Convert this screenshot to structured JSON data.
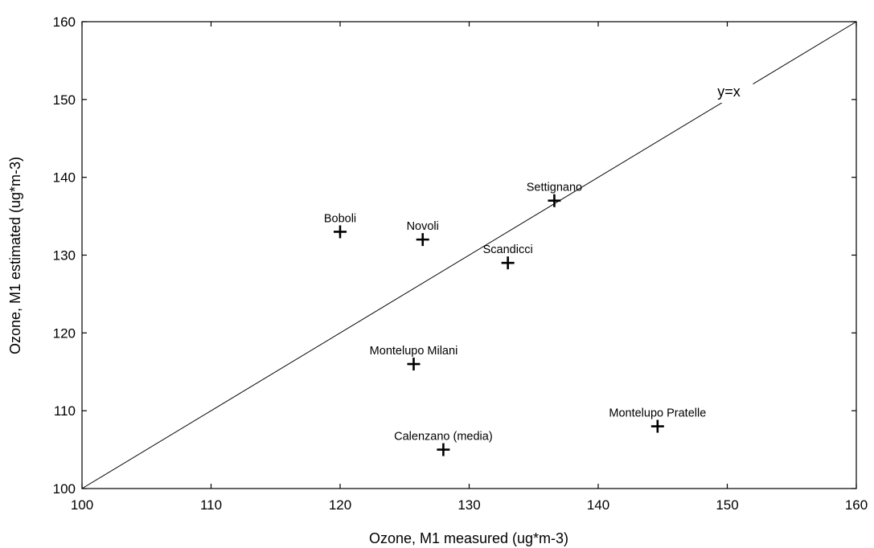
{
  "chart_data": {
    "type": "scatter",
    "xlabel": "Ozone, M1 measured (ug*m-3)",
    "ylabel": "Ozone, M1 estimated (ug*m-3)",
    "xlim": [
      100,
      160
    ],
    "ylim": [
      100,
      160
    ],
    "x_ticks": [
      "100",
      "110",
      "120",
      "130",
      "140",
      "150",
      "160"
    ],
    "y_ticks": [
      "100",
      "110",
      "120",
      "130",
      "140",
      "150",
      "160"
    ],
    "grid": false,
    "marker": "plus",
    "reference_line": {
      "label": "y=x",
      "from": [
        100,
        100
      ],
      "to": [
        160,
        160
      ]
    },
    "points": [
      {
        "label": "Boboli",
        "x": 120.0,
        "y": 133.0
      },
      {
        "label": "Novoli",
        "x": 126.4,
        "y": 132.0
      },
      {
        "label": "Settignano",
        "x": 136.6,
        "y": 137.0
      },
      {
        "label": "Scandicci",
        "x": 133.0,
        "y": 129.0
      },
      {
        "label": "Montelupo Milani",
        "x": 125.7,
        "y": 116.0
      },
      {
        "label": "Calenzano (media)",
        "x": 128.0,
        "y": 105.0
      },
      {
        "label": "Montelupo Pratelle",
        "x": 144.6,
        "y": 108.0
      }
    ]
  }
}
